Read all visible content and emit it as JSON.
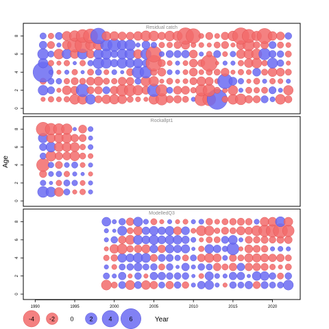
{
  "chart_data": {
    "type": "bubble",
    "xlabel": "Year",
    "ylabel": "Age",
    "xlim": [
      1988.5,
      2023.5
    ],
    "ylim": [
      -0.6,
      9.4
    ],
    "x_ticks": [
      1990,
      1995,
      2000,
      2005,
      2010,
      2015,
      2020
    ],
    "y_ticks": [
      0,
      2,
      4,
      6,
      8
    ],
    "colors": {
      "negative": "#f26b6b",
      "positive": "#6b6bf2",
      "negative_stroke": "#d94a4a",
      "positive_stroke": "#4a4ad9"
    },
    "panels": [
      {
        "title": "Residual catch",
        "years": [
          1991,
          1992,
          1993,
          1994,
          1995,
          1996,
          1997,
          1998,
          1999,
          2000,
          2001,
          2002,
          2003,
          2004,
          2005,
          2006,
          2007,
          2008,
          2009,
          2010,
          2011,
          2012,
          2013,
          2014,
          2015,
          2016,
          2017,
          2018,
          2019,
          2020,
          2021,
          2022
        ],
        "ages": [
          1,
          2,
          3,
          4,
          5,
          6,
          7,
          8
        ],
        "residuals": [
          [
            -0.3,
            -0.5,
            -0.4,
            -0.5,
            -1.5,
            -1.5,
            1.5,
            -0.8,
            -1.2,
            -1.4,
            -1.2,
            -0.6,
            -0.4,
            -0.3,
            -1.5,
            -2.0,
            -0.8,
            -0.9,
            -0.6,
            0.3,
            -2.5,
            -2.5,
            6.0,
            -0.6,
            -1.5,
            -1.8,
            -0.9,
            -0.8,
            0.8,
            0.4,
            -1.5,
            -0.8
          ],
          [
            1.5,
            0.8,
            -0.3,
            -1.2,
            -1.0,
            2.5,
            -0.8,
            -0.9,
            0.8,
            -1.0,
            -2.0,
            -2.0,
            -1.5,
            -1.0,
            2.4,
            -2.0,
            0.6,
            -1.0,
            -1.0,
            -0.5,
            -2.0,
            -2.2,
            -0.6,
            -0.4,
            -1.4,
            0.3,
            -0.6,
            -0.5,
            -0.6,
            0.8,
            0.3,
            -1.4
          ],
          [
            -0.6,
            0.6,
            0.5,
            -0.5,
            -0.8,
            -0.6,
            -1.0,
            -1.2,
            -0.6,
            -0.5,
            -1.0,
            -0.9,
            0.6,
            -1.5,
            -1.4,
            -0.3,
            -0.6,
            -0.3,
            -0.4,
            -0.8,
            -1.2,
            -1.0,
            -0.4,
            3.3,
            1.0,
            0.5,
            -0.3,
            -0.6,
            0.3,
            -0.5,
            -0.4,
            0.3
          ],
          [
            6.0,
            0.3,
            -0.3,
            0.3,
            -0.5,
            0.2,
            -0.6,
            0.6,
            -0.4,
            0.4,
            0.2,
            -0.8,
            2.1,
            2.1,
            -0.7,
            -1.0,
            0.4,
            0.3,
            -0.4,
            -1.0,
            -0.4,
            -0.6,
            -0.6,
            -1.0,
            -0.3,
            -0.5,
            -0.4,
            1.0,
            -0.6,
            -1.2,
            -1.0,
            -0.6
          ],
          [
            1.4,
            -0.5,
            -0.3,
            -0.5,
            0.2,
            -0.5,
            0.5,
            1.8,
            1.6,
            0.9,
            1.6,
            1.2,
            1.3,
            0.8,
            -3.7,
            -0.8,
            -0.4,
            0.3,
            -0.4,
            -1.0,
            -0.8,
            -4.0,
            -0.2,
            0.3,
            0.3,
            -0.5,
            -1.2,
            -1.5,
            -0.5,
            1.6,
            0.7,
            -0.3
          ],
          [
            1.8,
            0.6,
            -1.5,
            1.4,
            -1.2,
            1.6,
            -1.0,
            1.4,
            1.6,
            0.8,
            1.5,
            1.6,
            -1.2,
            1.6,
            -3.7,
            0.4,
            0.8,
            0.8,
            0.9,
            -1.0,
            0.3,
            -0.5,
            0.8,
            -0.4,
            0.5,
            -1.2,
            -1.4,
            -1.6,
            2.0,
            0.8,
            0.7,
            -0.6
          ],
          [
            0.9,
            -0.8,
            0.3,
            -1.2,
            -3.0,
            -3.5,
            -1.5,
            -1.5,
            2.0,
            2.4,
            1.4,
            1.7,
            0.3,
            1.0,
            0.5,
            -0.5,
            -0.5,
            -0.8,
            -1.1,
            -0.4,
            -0.4,
            -0.3,
            -0.6,
            -0.8,
            -0.3,
            -1.2,
            -2.0,
            -0.7,
            -0.9,
            0.8,
            -0.6,
            -0.4
          ],
          [
            0.6,
            -0.5,
            0.8,
            -1.3,
            -1.7,
            -2.5,
            -3.0,
            3.7,
            -1.2,
            -1.2,
            -1.0,
            -0.9,
            -1.2,
            -1.6,
            -1.5,
            -0.9,
            -1.5,
            -1.4,
            -4.0,
            -3.2,
            -0.4,
            -0.8,
            -0.4,
            -0.9,
            -1.5,
            -4.0,
            -2.6,
            -1.4,
            -3.4,
            -1.2,
            -1.0,
            0.7
          ]
        ]
      },
      {
        "title": "Rockallpt1",
        "years": [
          1991,
          1992,
          1993,
          1994,
          1995,
          1996,
          1997
        ],
        "ages": [
          1,
          2,
          3,
          4,
          5,
          6,
          7,
          8
        ],
        "residuals": [
          [
            1.8,
            1.5,
            -1.2,
            0.6,
            -0.3,
            -0.5,
            0.3
          ],
          [
            0.5,
            0.2,
            -0.5,
            0.6,
            0.5,
            -0.4,
            0.3
          ],
          [
            -0.8,
            0.4,
            0.5,
            -0.5,
            0.3,
            0.2,
            -0.3
          ],
          [
            -2.5,
            0.5,
            -0.8,
            0.4,
            0.6,
            -0.4,
            0.3
          ],
          [
            0.6,
            -1.6,
            -0.9,
            -1.0,
            -1.4,
            -0.6,
            -0.4
          ],
          [
            0.8,
            1.5,
            -1.3,
            -1.3,
            -1.3,
            -0.5,
            0.4
          ],
          [
            1.4,
            -1.2,
            -1.3,
            -1.5,
            -0.9,
            -0.8,
            0.3
          ],
          [
            -2.8,
            -2.0,
            -1.8,
            -1.7,
            0.2,
            -1.0,
            0.4
          ]
        ]
      },
      {
        "title": "ModelledQ3",
        "years": [
          1999,
          2000,
          2001,
          2002,
          2003,
          2004,
          2005,
          2006,
          2007,
          2008,
          2009,
          2010,
          2011,
          2012,
          2013,
          2014,
          2015,
          2016,
          2017,
          2018,
          2019,
          2020,
          2021,
          2022
        ],
        "ages": [
          1,
          2,
          3,
          4,
          5,
          6,
          7,
          8
        ],
        "residuals": [
          [
            -1.5,
            -0.6,
            0.8,
            -1.3,
            0.8,
            -1.2,
            -0.9,
            0.6,
            -0.9,
            0.7,
            -0.7,
            0.3,
            0.9,
            1.2,
            0.3,
            -0.3,
            0.7,
            0.6,
            0.9,
            -0.8,
            0.8,
            0.6,
            0.6,
            1.5
          ],
          [
            0.6,
            0.3,
            0.9,
            -0.3,
            0.7,
            -0.3,
            0.9,
            0.9,
            0.7,
            0.7,
            0.7,
            0.2,
            -0.4,
            1.1,
            0.4,
            0.3,
            0.9,
            0.9,
            0.2,
            1.2,
            1.2,
            0.7,
            -0.6,
            0.7
          ],
          [
            0.3,
            -0.4,
            0.6,
            0.7,
            1.0,
            0.6,
            0.7,
            -0.6,
            0.7,
            0.2,
            0.9,
            0.3,
            0.7,
            0.6,
            -0.9,
            -0.6,
            -0.9,
            0.9,
            -0.9,
            -0.9,
            -0.8,
            -0.5,
            -0.3,
            -0.6
          ],
          [
            -0.5,
            -0.7,
            1.2,
            1.0,
            1.4,
            1.3,
            -0.8,
            0.8,
            0.8,
            0.5,
            -0.6,
            0.6,
            -0.9,
            -1.3,
            -1.0,
            0.4,
            -0.8,
            -0.6,
            -1.1,
            -1.1,
            -1.0,
            -0.9,
            -0.9,
            -0.6
          ],
          [
            -0.3,
            -1.2,
            -1.5,
            -0.7,
            -0.9,
            -1.1,
            1.0,
            -0.9,
            1.1,
            0.9,
            1.1,
            0.2,
            -0.5,
            1.2,
            0.9,
            0.5,
            2.2,
            -0.3,
            -1.0,
            -0.8,
            -0.7,
            0.3,
            0.4,
            0.3
          ],
          [
            0.3,
            0.7,
            -0.9,
            -1.3,
            1.3,
            1.0,
            1.4,
            1.0,
            1.2,
            1.2,
            0.9,
            0.4,
            -0.3,
            -0.6,
            -0.6,
            0.8,
            1.2,
            0.3,
            -0.8,
            -0.7,
            -0.8,
            -0.7,
            -0.8,
            -0.9
          ],
          [
            0.3,
            0.2,
            1.3,
            -0.6,
            -1.2,
            0.9,
            1.2,
            0.9,
            1.2,
            -1.0,
            1.0,
            -0.4,
            -1.5,
            -1.4,
            -0.5,
            -0.8,
            -0.6,
            -1.1,
            -0.9,
            -1.6,
            -2.0,
            -2.4,
            -3.0,
            -2.0
          ],
          [
            1.2,
            0.3,
            0.7,
            -0.9,
            1.3,
            0.4,
            -0.6,
            -0.3,
            0.3,
            -0.3,
            -0.4,
            0.3,
            0.4,
            -0.7,
            -0.4,
            -0.6,
            -0.7,
            -0.8,
            -0.7,
            0.4,
            -1.2,
            -1.2,
            1.5,
            -1.2
          ]
        ]
      }
    ],
    "legend": {
      "entries": [
        {
          "value": -4,
          "label": "-4"
        },
        {
          "value": -2,
          "label": "-2"
        },
        {
          "value": 0,
          "label": "0"
        },
        {
          "value": 2,
          "label": "2"
        },
        {
          "value": 4,
          "label": "4"
        },
        {
          "value": 6,
          "label": "6"
        }
      ]
    }
  }
}
